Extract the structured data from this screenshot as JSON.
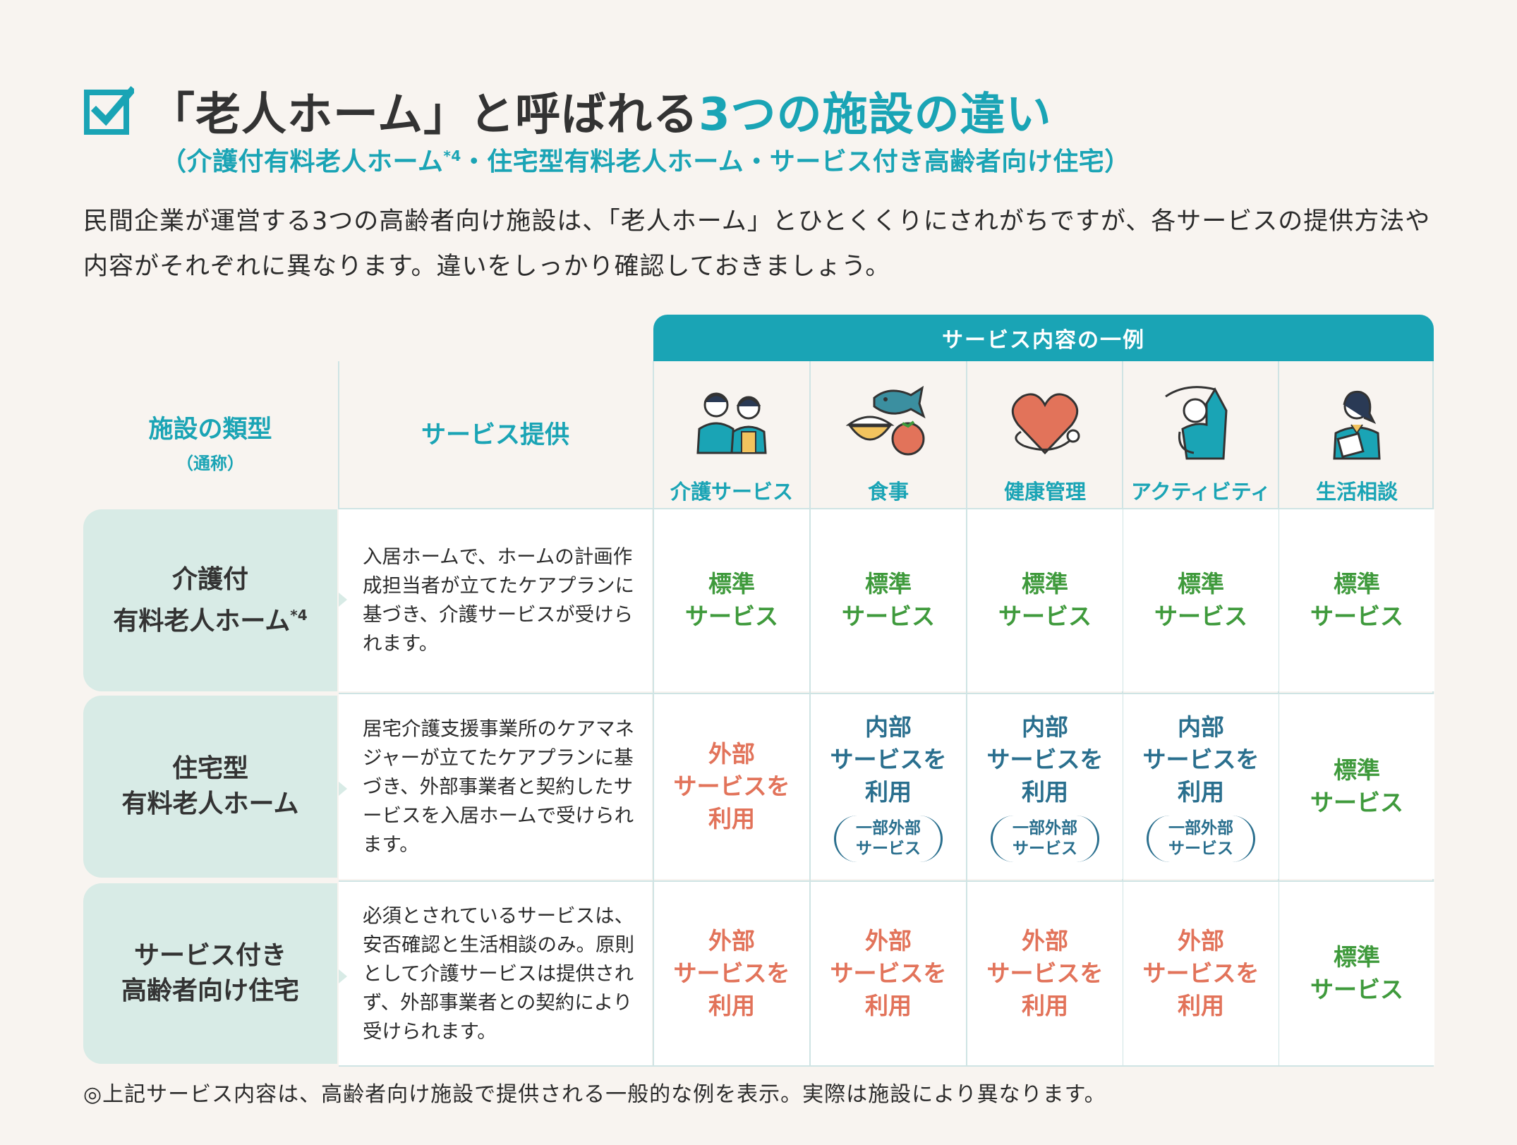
{
  "header": {
    "title_main": "「老人ホーム」と呼ばれる",
    "title_accent": "3つの施設の違い",
    "subtitle_a": "（介護付有料老人ホーム",
    "subtitle_sup": "*4",
    "subtitle_b": "・住宅型有料老人ホーム・サービス付き高齢者向け住宅）",
    "intro": "民間企業が運営する3つの高齢者向け施設は、「老人ホーム」とひとくくりにされがちですが、各サービスの提供方法や内容がそれぞれに異なります。違いをしっかり確認しておきましょう。"
  },
  "table": {
    "band_label": "サービス内容の一例",
    "col_type_label": "施設の類型",
    "col_type_note": "（通称）",
    "col_provision_label": "サービス提供",
    "services": [
      {
        "label": "介護サービス",
        "icon": "caregivers-icon"
      },
      {
        "label": "食事",
        "icon": "meal-icon"
      },
      {
        "label": "健康管理",
        "icon": "heart-stethoscope-icon"
      },
      {
        "label": "アクティビティ",
        "icon": "exercise-icon"
      },
      {
        "label": "生活相談",
        "icon": "consultant-icon"
      }
    ],
    "rows": [
      {
        "type_line1": "介護付",
        "type_line2": "有料老人ホーム",
        "type_sup": "*4",
        "desc": "入居ホームで、ホームの計画作成担当者が立てたケアプランに基づき、介護サービスが受けられます。",
        "cells": [
          {
            "kind": "std",
            "l1": "標準",
            "l2": "サービス"
          },
          {
            "kind": "std",
            "l1": "標準",
            "l2": "サービス"
          },
          {
            "kind": "std",
            "l1": "標準",
            "l2": "サービス"
          },
          {
            "kind": "std",
            "l1": "標準",
            "l2": "サービス"
          },
          {
            "kind": "std",
            "l1": "標準",
            "l2": "サービス"
          }
        ]
      },
      {
        "type_line1": "住宅型",
        "type_line2": "有料老人ホーム",
        "type_sup": "",
        "desc": "居宅介護支援事業所のケアマネジャーが立てたケアプランに基づき、外部事業者と契約したサービスを入居ホームで受けられます。",
        "cells": [
          {
            "kind": "ext",
            "l1": "外部",
            "l2": "サービスを",
            "l3": "利用"
          },
          {
            "kind": "int",
            "l1": "内部",
            "l2": "サービスを",
            "l3": "利用",
            "p1": "一部外部",
            "p2": "サービス"
          },
          {
            "kind": "int",
            "l1": "内部",
            "l2": "サービスを",
            "l3": "利用",
            "p1": "一部外部",
            "p2": "サービス"
          },
          {
            "kind": "int",
            "l1": "内部",
            "l2": "サービスを",
            "l3": "利用",
            "p1": "一部外部",
            "p2": "サービス"
          },
          {
            "kind": "std",
            "l1": "標準",
            "l2": "サービス"
          }
        ]
      },
      {
        "type_line1": "サービス付き",
        "type_line2": "高齢者向け住宅",
        "type_sup": "",
        "desc": "必須とされているサービスは、安否確認と生活相談のみ。原則として介護サービスは提供されず、外部事業者との契約により受けられます。",
        "cells": [
          {
            "kind": "ext",
            "l1": "外部",
            "l2": "サービスを",
            "l3": "利用"
          },
          {
            "kind": "ext",
            "l1": "外部",
            "l2": "サービスを",
            "l3": "利用"
          },
          {
            "kind": "ext",
            "l1": "外部",
            "l2": "サービスを",
            "l3": "利用"
          },
          {
            "kind": "ext",
            "l1": "外部",
            "l2": "サービスを",
            "l3": "利用"
          },
          {
            "kind": "std",
            "l1": "標準",
            "l2": "サービス"
          }
        ]
      }
    ]
  },
  "note": "◎上記サービス内容は、高齢者向け施設で提供される一般的な例を表示。実際は施設により異なります。"
}
